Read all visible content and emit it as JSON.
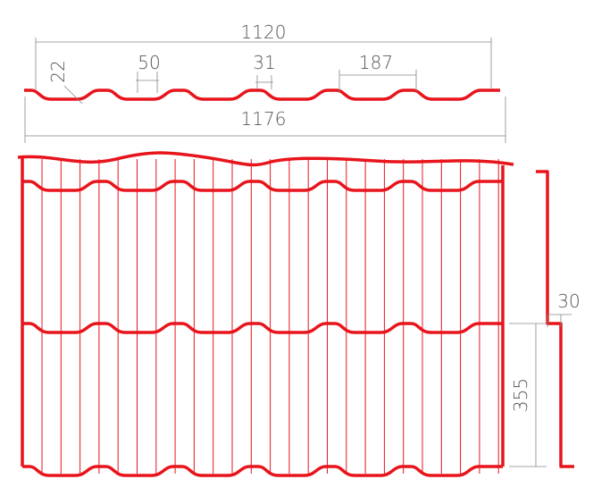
{
  "dimensions": {
    "cover_width": "1120",
    "rib_top": "50",
    "rib_height": "22",
    "rib_fillet": "31",
    "pitch": "187",
    "total_width": "1176",
    "step_height": "30",
    "step_length": "355"
  }
}
